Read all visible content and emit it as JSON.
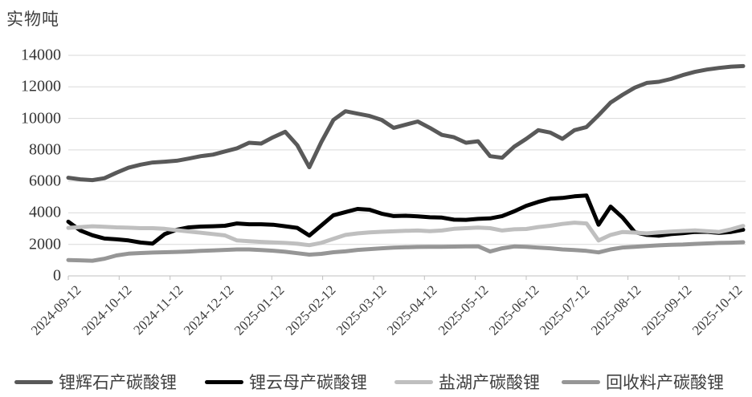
{
  "title": "实物吨",
  "axes": {
    "y_unit_label": "实物吨",
    "y_tick_labels": [
      "0",
      "2000",
      "4000",
      "6000",
      "8000",
      "10000",
      "12000",
      "14000"
    ],
    "x_tick_labels": [
      "2024-09-12",
      "2024-10-12",
      "2024-11-12",
      "2024-12-12",
      "2025-01-12",
      "2025-02-12",
      "2025-03-12",
      "2025-04-12",
      "2025-05-12",
      "2025-06-12",
      "2025-07-12",
      "2025-08-12",
      "2025-09-12",
      "2025-10-12"
    ]
  },
  "colors": {
    "spodumene": "#595959",
    "lepidolite": "#000000",
    "salt_lake": "#bfbfbf",
    "recycled": "#969696",
    "gridline": "#d9d9d9",
    "axis_line": "#bfbfbf",
    "label_text": "#404040"
  },
  "legend": [
    {
      "label": "锂辉石产碳酸锂",
      "color": "#595959"
    },
    {
      "label": "锂云母产碳酸锂",
      "color": "#000000"
    },
    {
      "label": "盐湖产碳酸锂",
      "color": "#bfbfbf"
    },
    {
      "label": "回收料产碳酸锂",
      "color": "#969696"
    }
  ],
  "chart_data": {
    "type": "line",
    "title": "实物吨",
    "ylabel": "实物吨",
    "xlabel": "",
    "ylim": [
      0,
      14000
    ],
    "yticks": [
      0,
      2000,
      4000,
      6000,
      8000,
      10000,
      12000,
      14000
    ],
    "grid": true,
    "legend_position": "bottom",
    "x_tick_labels": [
      "2024-09-12",
      "2024-10-12",
      "2024-11-12",
      "2024-12-12",
      "2025-01-12",
      "2025-02-12",
      "2025-03-12",
      "2025-04-12",
      "2025-05-12",
      "2025-06-12",
      "2025-07-12",
      "2025-08-12",
      "2025-09-12",
      "2025-10-12"
    ],
    "x_note": "weekly observations, 57 points from 2024-09-12 to 2025-10-12; monthly tick marks",
    "series": [
      {
        "name": "锂辉石产碳酸锂",
        "color": "#595959",
        "values": [
          6230,
          6130,
          6080,
          6200,
          6550,
          6870,
          7060,
          7200,
          7250,
          7310,
          7450,
          7600,
          7700,
          7900,
          8100,
          8450,
          8400,
          8800,
          9150,
          8300,
          6900,
          8500,
          9900,
          10450,
          10300,
          10150,
          9900,
          9400,
          9600,
          9800,
          9400,
          8950,
          8800,
          8450,
          8550,
          7600,
          7500,
          8200,
          8700,
          9250,
          9100,
          8700,
          9250,
          9450,
          10200,
          11000,
          11500,
          11950,
          12250,
          12320,
          12500,
          12750,
          12950,
          13100,
          13200,
          13280,
          13320
        ]
      },
      {
        "name": "锂云母产碳酸锂",
        "color": "#000000",
        "values": [
          3440,
          2880,
          2580,
          2370,
          2320,
          2250,
          2120,
          2050,
          2650,
          2930,
          3080,
          3130,
          3150,
          3180,
          3330,
          3280,
          3280,
          3250,
          3150,
          3050,
          2560,
          3200,
          3850,
          4050,
          4250,
          4200,
          3950,
          3800,
          3820,
          3780,
          3720,
          3700,
          3570,
          3560,
          3620,
          3650,
          3800,
          4100,
          4450,
          4700,
          4900,
          4950,
          5050,
          5100,
          3250,
          4400,
          3700,
          2780,
          2600,
          2550,
          2650,
          2710,
          2790,
          2800,
          2730,
          2790,
          2930
        ]
      },
      {
        "name": "盐湖产碳酸锂",
        "color": "#bfbfbf",
        "values": [
          3050,
          3100,
          3150,
          3120,
          3080,
          3060,
          3030,
          3030,
          2990,
          2900,
          2820,
          2740,
          2660,
          2570,
          2250,
          2200,
          2160,
          2130,
          2090,
          2040,
          1950,
          2100,
          2350,
          2600,
          2700,
          2760,
          2800,
          2830,
          2860,
          2880,
          2840,
          2880,
          2990,
          3030,
          3070,
          3030,
          2880,
          2960,
          2980,
          3100,
          3180,
          3300,
          3380,
          3330,
          2250,
          2600,
          2790,
          2750,
          2700,
          2760,
          2810,
          2850,
          2890,
          2840,
          2790,
          2960,
          3170
        ]
      },
      {
        "name": "回收料产碳酸锂",
        "color": "#969696",
        "values": [
          1010,
          990,
          960,
          1090,
          1300,
          1410,
          1450,
          1480,
          1500,
          1520,
          1550,
          1590,
          1620,
          1650,
          1680,
          1680,
          1640,
          1600,
          1530,
          1440,
          1350,
          1400,
          1500,
          1560,
          1650,
          1700,
          1750,
          1790,
          1820,
          1840,
          1850,
          1850,
          1860,
          1870,
          1880,
          1550,
          1750,
          1870,
          1850,
          1790,
          1750,
          1680,
          1640,
          1590,
          1490,
          1680,
          1800,
          1850,
          1900,
          1940,
          1970,
          1990,
          2030,
          2060,
          2090,
          2110,
          2140
        ]
      }
    ]
  }
}
